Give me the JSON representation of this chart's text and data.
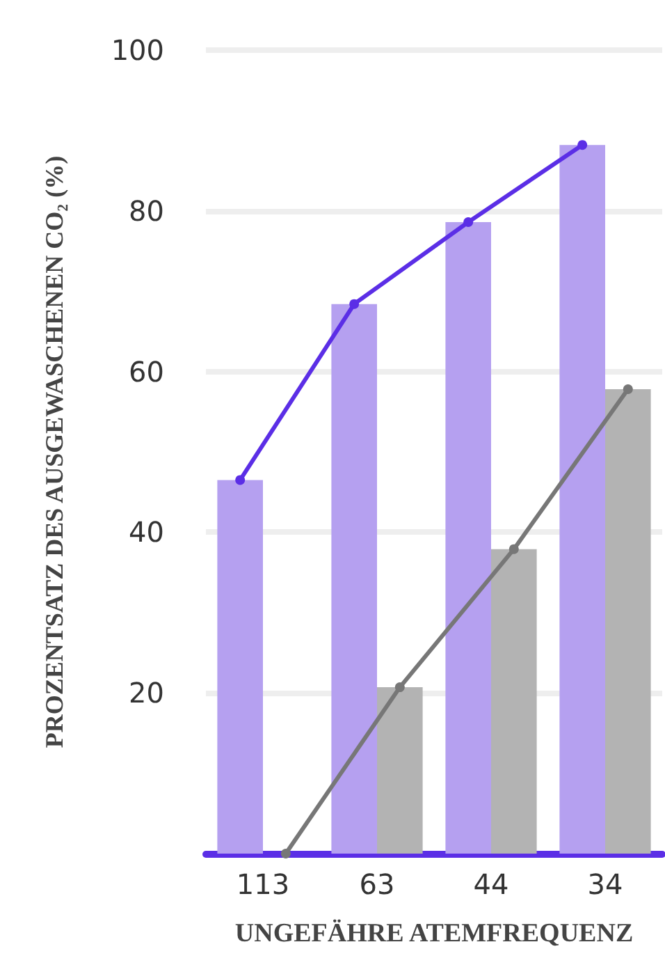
{
  "chart_data": {
    "type": "bar",
    "xlabel": "UNGEFÄHRE ATEMFREQUENZ",
    "ylabel": "PROZENTSATZ DES AUSGEWASCHENEN CO₂ (%)",
    "categories": [
      "113",
      "63",
      "44",
      "34"
    ],
    "series": [
      {
        "color": "#b5a0f0",
        "values": [
          46.5,
          68.4,
          78.6,
          88.2
        ]
      },
      {
        "color": "#b3b3b3",
        "values": [
          0,
          20.7,
          37.9,
          57.8
        ]
      },
      {
        "type": "line",
        "color": "#5b2ee6",
        "values": [
          46.5,
          68.4,
          78.6,
          88.2
        ]
      },
      {
        "type": "line",
        "color": "#777777",
        "values": [
          0,
          20.7,
          37.9,
          57.8
        ]
      }
    ],
    "ylim": [
      0,
      100
    ],
    "yticks": [
      20,
      40,
      60,
      80,
      100
    ],
    "grid": "y",
    "marker": "circle",
    "line_style": "solid"
  }
}
